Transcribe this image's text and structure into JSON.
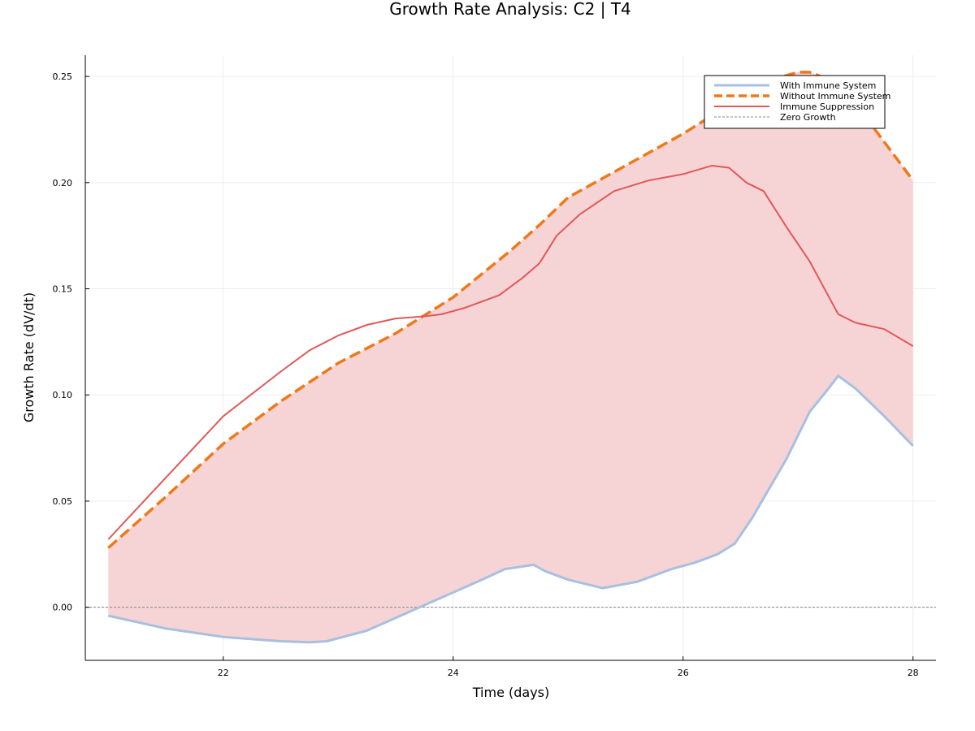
{
  "chart_data": {
    "type": "line",
    "title": "Growth Rate Analysis: C2 | T4",
    "xlabel": "Time (days)",
    "ylabel": "Growth Rate (dV/dt)",
    "xlim": [
      20.8,
      28.2
    ],
    "ylim": [
      -0.025,
      0.26
    ],
    "xticks": [
      22,
      24,
      26,
      28
    ],
    "xtick_labels": [
      "22",
      "24",
      "26",
      "28"
    ],
    "yticks": [
      0.0,
      0.05,
      0.1,
      0.15,
      0.2,
      0.25
    ],
    "ytick_labels": [
      "0.00",
      "0.05",
      "0.10",
      "0.15",
      "0.20",
      "0.25"
    ],
    "grid": true,
    "legend_position": "top-right",
    "colors": {
      "with_immune": "#a8c0e0",
      "without_immune": "#f07818",
      "suppression": "#e05858",
      "fill": "#f6d3d5",
      "zero": "#888888",
      "grid": "#ececec"
    },
    "series": [
      {
        "name": "With Immune System",
        "x": [
          21.0,
          21.25,
          21.5,
          21.75,
          22.0,
          22.25,
          22.5,
          22.75,
          22.9,
          23.25,
          23.5,
          23.75,
          24.0,
          24.25,
          24.45,
          24.7,
          24.8,
          25.0,
          25.3,
          25.6,
          25.9,
          26.1,
          26.3,
          26.45,
          26.6,
          26.9,
          27.1,
          27.25,
          27.35,
          27.5,
          27.75,
          28.0
        ],
        "y": [
          -0.004,
          -0.007,
          -0.01,
          -0.012,
          -0.014,
          -0.015,
          -0.016,
          -0.0165,
          -0.016,
          -0.011,
          -0.005,
          0.001,
          0.007,
          0.013,
          0.018,
          0.02,
          0.017,
          0.013,
          0.009,
          0.012,
          0.018,
          0.021,
          0.025,
          0.03,
          0.042,
          0.07,
          0.092,
          0.102,
          0.109,
          0.103,
          0.09,
          0.076
        ]
      },
      {
        "name": "Without Immune System",
        "x": [
          21.0,
          21.5,
          22.0,
          22.5,
          23.0,
          23.5,
          24.0,
          24.5,
          24.75,
          25.0,
          25.5,
          26.0,
          26.5,
          26.8,
          27.0,
          27.1,
          27.3,
          27.6,
          28.0
        ],
        "y": [
          0.028,
          0.052,
          0.077,
          0.097,
          0.115,
          0.129,
          0.146,
          0.168,
          0.18,
          0.193,
          0.208,
          0.223,
          0.24,
          0.249,
          0.252,
          0.252,
          0.248,
          0.23,
          0.201
        ]
      },
      {
        "name": "Immune Suppression",
        "x": [
          21.0,
          21.5,
          22.0,
          22.5,
          22.75,
          23.0,
          23.25,
          23.5,
          23.75,
          23.9,
          24.1,
          24.4,
          24.6,
          24.75,
          24.9,
          25.1,
          25.4,
          25.7,
          26.0,
          26.25,
          26.4,
          26.55,
          26.7,
          26.9,
          27.1,
          27.25,
          27.35,
          27.5,
          27.75,
          28.0
        ],
        "y": [
          0.032,
          0.061,
          0.09,
          0.111,
          0.121,
          0.128,
          0.133,
          0.136,
          0.137,
          0.138,
          0.141,
          0.147,
          0.155,
          0.162,
          0.175,
          0.185,
          0.196,
          0.201,
          0.204,
          0.208,
          0.207,
          0.2,
          0.196,
          0.179,
          0.163,
          0.148,
          0.138,
          0.134,
          0.131,
          0.123
        ]
      },
      {
        "name": "Zero Growth",
        "x": [
          20.8,
          28.2
        ],
        "y": [
          0,
          0
        ]
      }
    ]
  }
}
